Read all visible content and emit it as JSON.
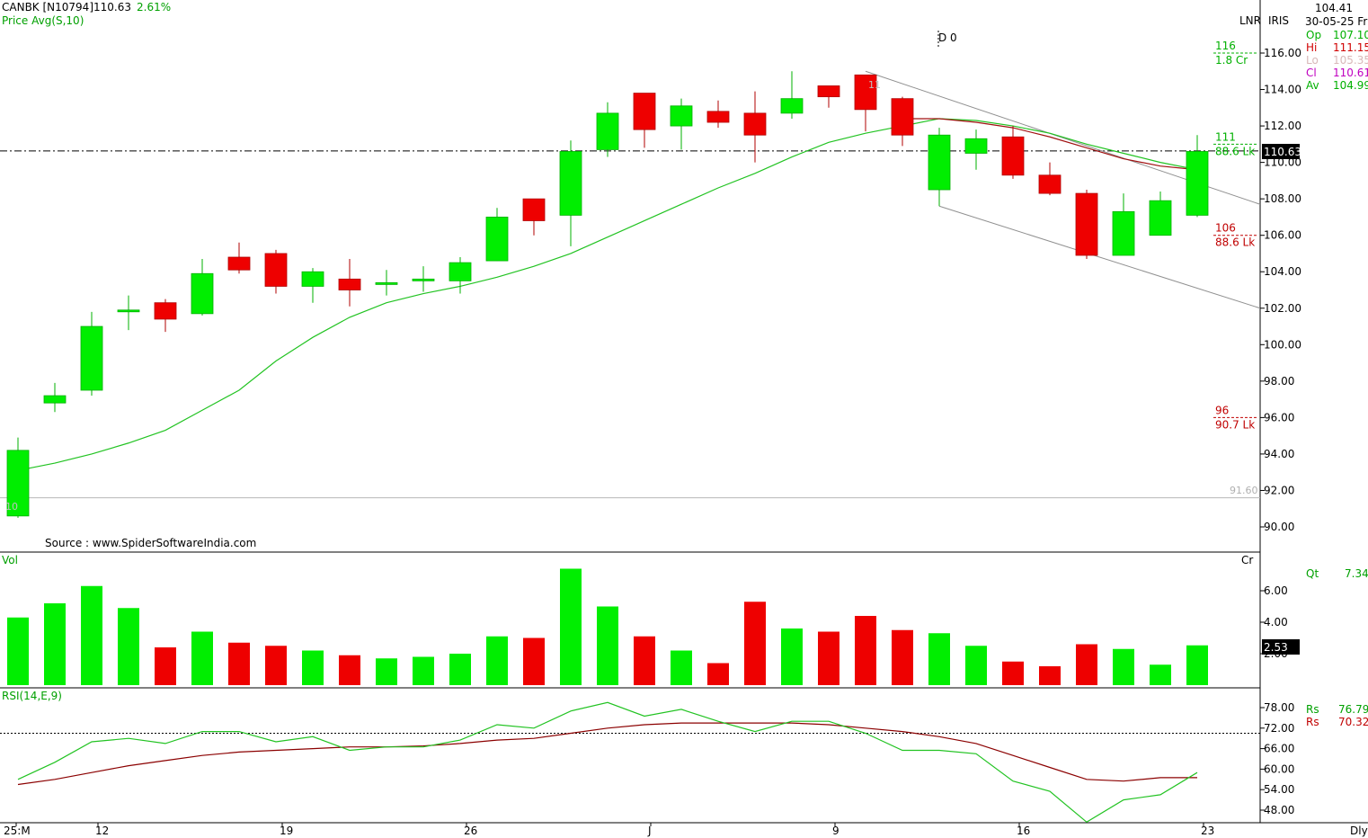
{
  "header": {
    "symbol": "CANBK [N10794]",
    "last": "110.63",
    "change_pct": "2.61%",
    "indicator_label": "Price  Avg(S,10)"
  },
  "toolbar": {
    "lnr": "LNR",
    "iris": "IRIS"
  },
  "ohlc_panel": {
    "top_value": "104.41",
    "date": "30-05-25 Fri",
    "rows": [
      {
        "label": "Op",
        "value": "107.10",
        "color": "#00b000"
      },
      {
        "label": "Hi",
        "value": "111.15",
        "color": "#d00000"
      },
      {
        "label": "Lo",
        "value": "105.35",
        "color": "#d8b8b8"
      },
      {
        "label": "Cl",
        "value": "110.61",
        "color": "#c000c0"
      },
      {
        "label": "Av",
        "value": "104.99",
        "color": "#00b000"
      }
    ]
  },
  "source_note": "Source : www.SpiderSoftwareIndia.com",
  "markers": {
    "d0": "D 0",
    "last_price_tag": "110.63",
    "low_line_value": "91.60",
    "start_label": "10",
    "peak_label": "11"
  },
  "price_levels": [
    {
      "price": "116",
      "vol": "1.8 Cr",
      "color": "#00b000"
    },
    {
      "price": "111",
      "vol": "88.6 Lk",
      "color": "#00b000"
    },
    {
      "price": "106",
      "vol": "88.6 Lk",
      "color": "#c00000"
    },
    {
      "price": "96",
      "vol": "90.7 Lk",
      "color": "#c00000"
    }
  ],
  "volume_panel": {
    "title": "Vol",
    "unit": "Cr",
    "qt_label": "Qt",
    "qt_value": "7.34",
    "last_tag": "2.53",
    "y_ticks": [
      "6.00",
      "4.00",
      "2.00"
    ]
  },
  "rsi_panel": {
    "title": "RSI(14,E,9)",
    "rs1_label": "Rs",
    "rs1_value": "76.79",
    "rs2_label": "Rs",
    "rs2_value": "70.32",
    "y_ticks": [
      "78.00",
      "72.00",
      "66.00",
      "60.00",
      "54.00",
      "48.00"
    ]
  },
  "x_axis": {
    "labels": [
      "25:M",
      "12",
      "19",
      "26",
      "J",
      "9",
      "16",
      "23"
    ],
    "periodicity": "Dly"
  },
  "chart_data": {
    "type": "candlestick",
    "price_axis": {
      "ylim": [
        89,
        117.5
      ],
      "ticks": [
        "90.00",
        "92.00",
        "94.00",
        "96.00",
        "98.00",
        "100.00",
        "102.00",
        "104.00",
        "106.00",
        "108.00",
        "110.00",
        "112.00",
        "114.00",
        "116.00"
      ]
    },
    "candles": [
      {
        "o": 90.6,
        "h": 94.9,
        "l": 90.5,
        "c": 94.2
      },
      {
        "o": 96.8,
        "h": 97.9,
        "l": 96.3,
        "c": 97.2
      },
      {
        "o": 97.5,
        "h": 101.8,
        "l": 97.2,
        "c": 101.0
      },
      {
        "o": 101.9,
        "h": 102.7,
        "l": 100.8,
        "c": 101.9
      },
      {
        "o": 102.3,
        "h": 102.5,
        "l": 100.7,
        "c": 101.4
      },
      {
        "o": 101.7,
        "h": 104.7,
        "l": 101.6,
        "c": 103.9
      },
      {
        "o": 104.8,
        "h": 105.6,
        "l": 103.9,
        "c": 104.1
      },
      {
        "o": 105.0,
        "h": 105.2,
        "l": 102.8,
        "c": 103.2
      },
      {
        "o": 103.2,
        "h": 104.2,
        "l": 102.3,
        "c": 104.0
      },
      {
        "o": 103.6,
        "h": 104.7,
        "l": 102.1,
        "c": 103.0
      },
      {
        "o": 103.4,
        "h": 104.1,
        "l": 102.7,
        "c": 103.4
      },
      {
        "o": 103.5,
        "h": 104.3,
        "l": 102.9,
        "c": 103.6
      },
      {
        "o": 103.5,
        "h": 104.8,
        "l": 102.8,
        "c": 104.5
      },
      {
        "o": 104.6,
        "h": 107.5,
        "l": 104.6,
        "c": 107.0
      },
      {
        "o": 108.0,
        "h": 108.0,
        "l": 106.0,
        "c": 106.8
      },
      {
        "o": 107.1,
        "h": 111.2,
        "l": 105.4,
        "c": 110.6
      },
      {
        "o": 110.7,
        "h": 113.3,
        "l": 110.3,
        "c": 112.7
      },
      {
        "o": 113.8,
        "h": 113.8,
        "l": 110.8,
        "c": 111.8
      },
      {
        "o": 112.0,
        "h": 113.5,
        "l": 110.7,
        "c": 113.1
      },
      {
        "o": 112.8,
        "h": 113.4,
        "l": 111.9,
        "c": 112.2
      },
      {
        "o": 112.7,
        "h": 113.9,
        "l": 110.0,
        "c": 111.5
      },
      {
        "o": 112.7,
        "h": 115.0,
        "l": 112.4,
        "c": 113.5
      },
      {
        "o": 114.2,
        "h": 114.2,
        "l": 113.0,
        "c": 113.6
      },
      {
        "o": 114.8,
        "h": 114.8,
        "l": 111.7,
        "c": 112.9
      },
      {
        "o": 113.5,
        "h": 113.6,
        "l": 110.9,
        "c": 111.5
      },
      {
        "o": 108.5,
        "h": 111.9,
        "l": 107.6,
        "c": 111.5
      },
      {
        "o": 110.5,
        "h": 111.8,
        "l": 109.6,
        "c": 111.3
      },
      {
        "o": 111.4,
        "h": 112.0,
        "l": 109.1,
        "c": 109.3
      },
      {
        "o": 109.3,
        "h": 110.0,
        "l": 108.2,
        "c": 108.3
      },
      {
        "o": 108.3,
        "h": 108.5,
        "l": 104.7,
        "c": 104.9
      },
      {
        "o": 104.9,
        "h": 108.3,
        "l": 104.9,
        "c": 107.3
      },
      {
        "o": 106.0,
        "h": 108.4,
        "l": 106.0,
        "c": 107.9
      },
      {
        "o": 107.1,
        "h": 111.5,
        "l": 107.0,
        "c": 110.6
      }
    ],
    "sma10": [
      93.1,
      93.5,
      94.0,
      94.6,
      95.3,
      96.4,
      97.5,
      99.1,
      100.4,
      101.5,
      102.3,
      102.8,
      103.2,
      103.7,
      104.3,
      105.0,
      105.9,
      106.8,
      107.7,
      108.6,
      109.4,
      110.3,
      111.1,
      111.6,
      112.0,
      112.4,
      112.3,
      112.0,
      111.6,
      111.0,
      110.5,
      110.0,
      109.6
    ],
    "volume": [
      4.3,
      5.2,
      6.3,
      4.9,
      2.4,
      3.4,
      2.7,
      2.5,
      2.2,
      1.9,
      1.7,
      1.8,
      2.0,
      3.1,
      3.0,
      7.4,
      5.0,
      3.1,
      2.2,
      1.4,
      5.3,
      3.6,
      3.4,
      4.4,
      3.5,
      3.3,
      2.5,
      1.5,
      1.2,
      2.6,
      2.3,
      1.3,
      2.53
    ],
    "rsi": [
      57.0,
      62.0,
      68.0,
      69.0,
      67.5,
      71.0,
      71.0,
      68.0,
      69.5,
      65.5,
      66.5,
      66.5,
      68.5,
      73.0,
      72.0,
      77.0,
      79.5,
      75.5,
      77.5,
      74.0,
      71.0,
      74.0,
      74.0,
      70.5,
      65.5,
      65.5,
      64.5,
      56.5,
      53.5,
      44.5,
      51.0,
      52.5,
      59.0
    ],
    "rsi_signal": [
      55.5,
      57.0,
      59.0,
      61.0,
      62.5,
      64.0,
      65.0,
      65.5,
      66.0,
      66.5,
      66.5,
      66.8,
      67.5,
      68.5,
      69.0,
      70.5,
      72.0,
      73.0,
      73.5,
      73.5,
      73.5,
      73.5,
      73.0,
      72.0,
      71.0,
      69.5,
      67.5,
      64.0,
      60.5,
      57.0,
      56.5,
      57.5,
      57.5
    ],
    "rsi_axis": {
      "ylim": [
        45,
        82
      ],
      "ref_line": 70.5
    },
    "volume_axis": {
      "ylim": [
        0,
        8.2
      ]
    }
  }
}
